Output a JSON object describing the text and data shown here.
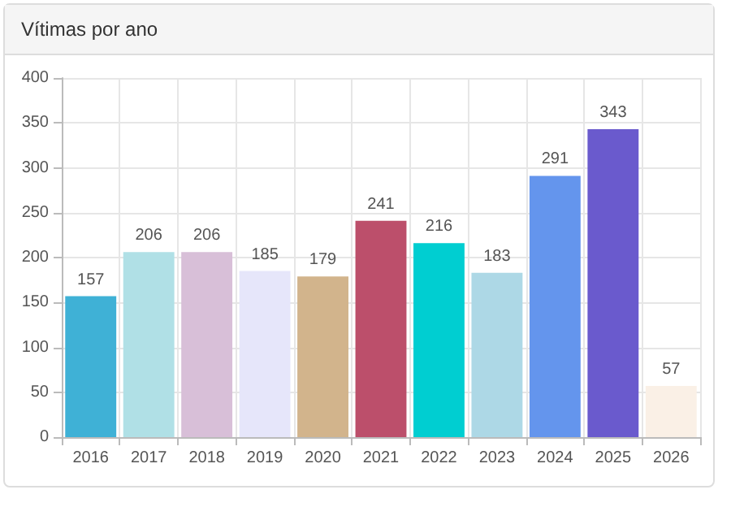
{
  "chart_data": {
    "type": "bar",
    "title": "Vítimas por ano",
    "categories": [
      "2016",
      "2017",
      "2018",
      "2019",
      "2020",
      "2021",
      "2022",
      "2023",
      "2024",
      "2025",
      "2026"
    ],
    "values": [
      157,
      206,
      206,
      185,
      179,
      241,
      216,
      183,
      291,
      343,
      57
    ],
    "colors": [
      "#3fb1d6",
      "#b0e0e6",
      "#d8bfd8",
      "#e6e6fa",
      "#d2b48c",
      "#bc4f6b",
      "#00ced1",
      "#add8e6",
      "#6495ed",
      "#6a5acd",
      "#faf0e6"
    ],
    "ylim": [
      0,
      400
    ],
    "yticks": [
      0,
      50,
      100,
      150,
      200,
      250,
      300,
      350,
      400
    ],
    "grid": true,
    "data_labels": true
  }
}
